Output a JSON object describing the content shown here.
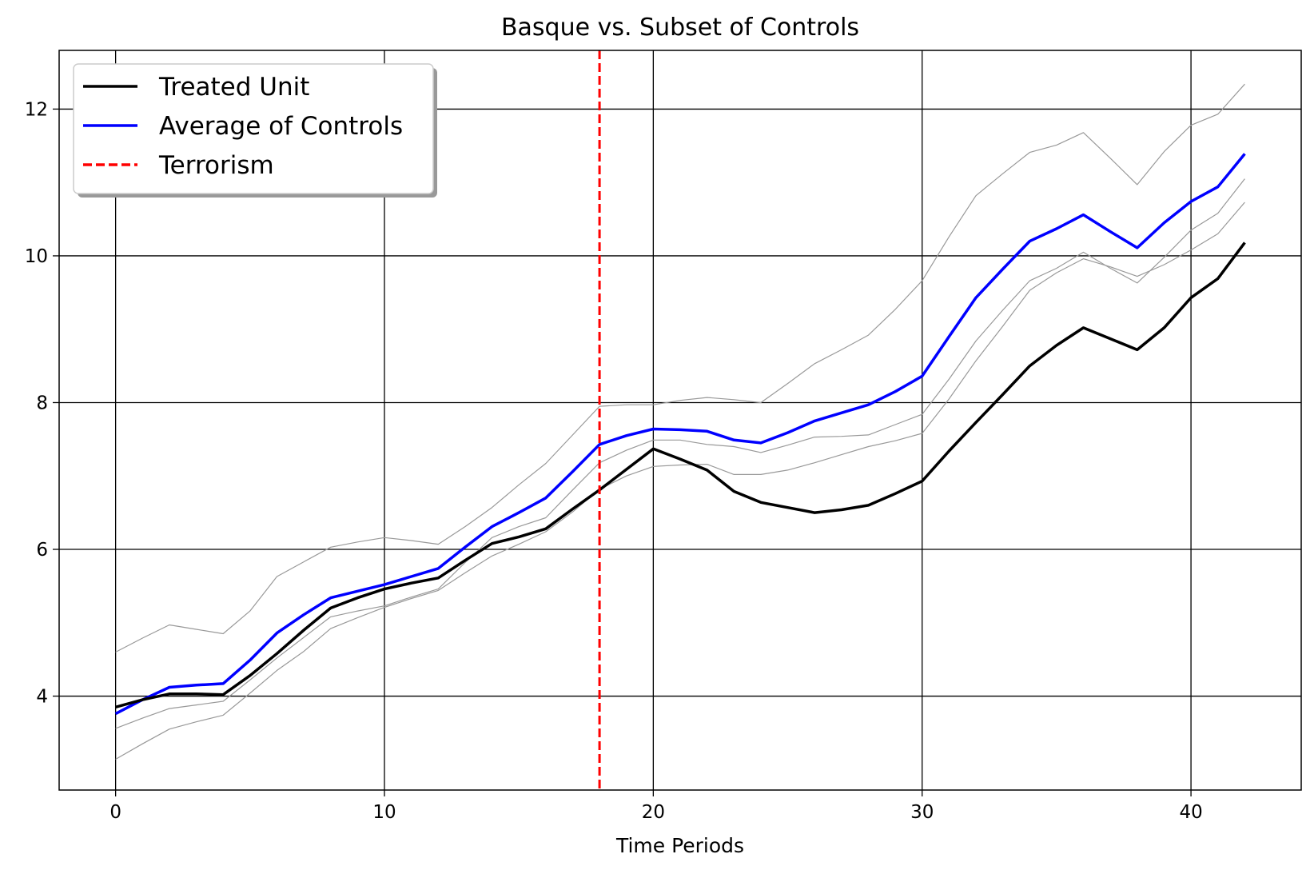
{
  "chart_data": {
    "type": "line",
    "title": "Basque vs. Subset of Controls",
    "xlabel": "Time Periods",
    "ylabel": "",
    "xlim": [
      -2.1,
      44.1
    ],
    "ylim": [
      2.72,
      12.8
    ],
    "xticks": [
      0,
      10,
      20,
      30,
      40
    ],
    "yticks": [
      4,
      6,
      8,
      10,
      12
    ],
    "xtick_labels": [
      "0",
      "10",
      "20",
      "30",
      "40"
    ],
    "ytick_labels": [
      "4",
      "6",
      "8",
      "10",
      "12"
    ],
    "grid": true,
    "legend_position": "upper-left",
    "x": [
      0,
      1,
      2,
      3,
      4,
      5,
      6,
      7,
      8,
      9,
      10,
      11,
      12,
      13,
      14,
      15,
      16,
      17,
      18,
      19,
      20,
      21,
      22,
      23,
      24,
      25,
      26,
      27,
      28,
      29,
      30,
      31,
      32,
      33,
      34,
      35,
      36,
      37,
      38,
      39,
      40,
      41,
      42
    ],
    "series": [
      {
        "name": "Treated Unit",
        "color": "#000000",
        "values": [
          3.85,
          3.95,
          4.03,
          4.03,
          4.02,
          4.28,
          4.58,
          4.9,
          5.2,
          5.34,
          5.46,
          5.54,
          5.61,
          5.85,
          6.08,
          6.17,
          6.28,
          6.55,
          6.81,
          7.09,
          7.37,
          7.23,
          7.08,
          6.79,
          6.64,
          6.57,
          6.5,
          6.54,
          6.6,
          6.76,
          6.93,
          7.34,
          7.73,
          8.11,
          8.5,
          8.78,
          9.02,
          8.87,
          8.72,
          9.02,
          9.43,
          9.69,
          10.18
        ]
      },
      {
        "name": "Average of Controls",
        "color": "#0000ff",
        "values": [
          3.76,
          3.95,
          4.12,
          4.15,
          4.17,
          4.49,
          4.86,
          5.11,
          5.34,
          5.43,
          5.52,
          5.63,
          5.74,
          6.03,
          6.31,
          6.5,
          6.7,
          7.06,
          7.43,
          7.55,
          7.64,
          7.63,
          7.61,
          7.49,
          7.45,
          7.59,
          7.75,
          7.86,
          7.97,
          8.15,
          8.36,
          8.9,
          9.43,
          9.82,
          10.2,
          10.37,
          10.56,
          10.33,
          10.11,
          10.45,
          10.74,
          10.94,
          11.39
        ]
      }
    ],
    "control_series": [
      {
        "color": "#999999",
        "values": [
          4.6,
          4.79,
          4.97,
          4.91,
          4.85,
          5.16,
          5.63,
          5.83,
          6.03,
          6.1,
          6.16,
          6.12,
          6.07,
          6.31,
          6.57,
          6.88,
          7.17,
          7.56,
          7.95,
          7.97,
          7.97,
          8.03,
          8.07,
          8.04,
          8.0,
          8.26,
          8.53,
          8.72,
          8.92,
          9.27,
          9.66,
          10.26,
          10.82,
          11.12,
          11.41,
          11.51,
          11.68,
          11.33,
          10.97,
          11.42,
          11.78,
          11.93,
          12.34
        ]
      },
      {
        "color": "#999999",
        "values": [
          3.56,
          3.7,
          3.83,
          3.88,
          3.93,
          4.22,
          4.52,
          4.8,
          5.08,
          5.16,
          5.23,
          5.35,
          5.46,
          5.82,
          6.16,
          6.31,
          6.43,
          6.81,
          7.18,
          7.35,
          7.49,
          7.49,
          7.43,
          7.4,
          7.32,
          7.42,
          7.53,
          7.54,
          7.56,
          7.7,
          7.84,
          8.32,
          8.84,
          9.26,
          9.66,
          9.83,
          10.05,
          9.83,
          9.63,
          9.98,
          10.35,
          10.58,
          11.05
        ]
      },
      {
        "color": "#999999",
        "values": [
          3.14,
          3.35,
          3.55,
          3.65,
          3.74,
          4.04,
          4.35,
          4.61,
          4.92,
          5.07,
          5.21,
          5.33,
          5.44,
          5.68,
          5.91,
          6.07,
          6.24,
          6.51,
          6.82,
          7.0,
          7.13,
          7.15,
          7.16,
          7.02,
          7.02,
          7.08,
          7.18,
          7.29,
          7.4,
          7.48,
          7.58,
          8.05,
          8.57,
          9.04,
          9.53,
          9.77,
          9.96,
          9.85,
          9.72,
          9.88,
          10.08,
          10.3,
          10.73
        ]
      }
    ],
    "vertical_lines": [
      {
        "name": "Terrorism",
        "x": 18,
        "color": "#ff0000",
        "style": "dashed"
      }
    ],
    "legend": [
      {
        "label": "Treated Unit",
        "color": "#000000",
        "style": "solid"
      },
      {
        "label": "Average of Controls",
        "color": "#0000ff",
        "style": "solid"
      },
      {
        "label": "Terrorism",
        "color": "#ff0000",
        "style": "dashed"
      }
    ]
  }
}
